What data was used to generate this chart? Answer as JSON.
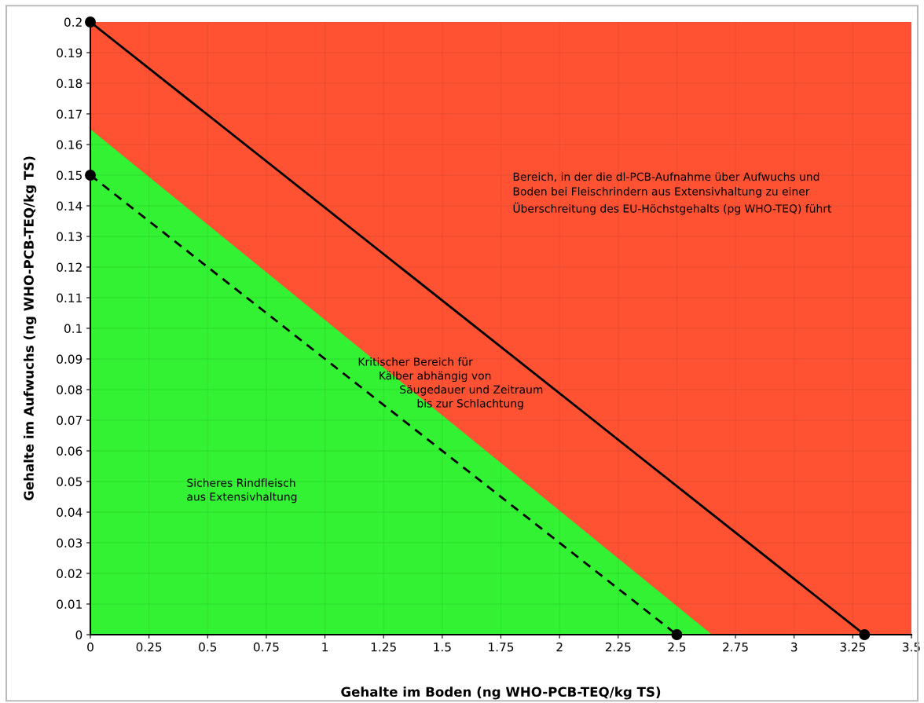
{
  "chart_data": {
    "type": "line",
    "xlabel": "Gehalte im Boden (ng WHO-PCB-TEQ/kg TS)",
    "ylabel": "Gehalte im Aufwuchs (ng WHO-PCB-TEQ/kg TS)",
    "xlim": [
      0,
      3.5
    ],
    "xticks": [
      0,
      0.25,
      0.5,
      0.75,
      1,
      1.25,
      1.5,
      1.75,
      2,
      2.25,
      2.5,
      2.75,
      3,
      3.25,
      3.5
    ],
    "ylim": [
      0,
      0.2
    ],
    "yticks": [
      0,
      0.01,
      0.02,
      0.03,
      0.04,
      0.05,
      0.06,
      0.07,
      0.08,
      0.09,
      0.1,
      0.11,
      0.12,
      0.13,
      0.14,
      0.15,
      0.16,
      0.17,
      0.18,
      0.19,
      0.2
    ],
    "grid": true,
    "bands": [
      {
        "axis": "y",
        "from": 0,
        "to": 0.2,
        "color": "#ff5233"
      }
    ],
    "series": [
      {
        "type": "area",
        "x": [
          0,
          2.65
        ],
        "values": [
          0.165,
          0
        ],
        "color": "#33f233"
      },
      {
        "x": [
          0,
          3.3
        ],
        "values": [
          0.2,
          0
        ],
        "color": "#000000",
        "line_style": "solid",
        "marker": "circle"
      },
      {
        "x": [
          0,
          2.5
        ],
        "values": [
          0.15,
          0
        ],
        "color": "#000000",
        "line_style": "dashed",
        "marker": "circle"
      }
    ],
    "annotations": [
      "Bereich, in der die dl-PCB-Aufnahme über Aufwuchs und\nBoden bei Fleischrindern aus Extensivhaltung zu einer\nÜberschreitung des EU-Höchstgehalts (pg WHO-TEQ) führt",
      "Kritischer Bereich für\n      Kälber abhängig von\n            Säugedauer und Zeitraum\n                 bis zur Schlachtung",
      "Sicheres Rindfleisch\naus Extensivhaltung"
    ]
  }
}
